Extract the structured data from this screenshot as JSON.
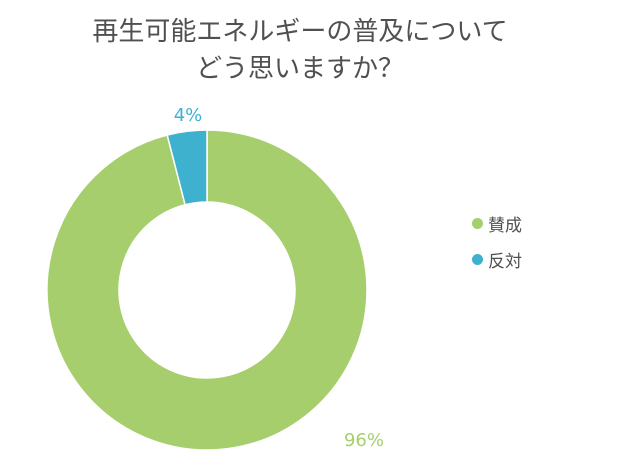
{
  "chart_data": {
    "type": "pie",
    "donut": true,
    "title_lines": [
      "再生可能エネルギーの普及について",
      "どう思いますか？"
    ],
    "categories": [
      "賛成",
      "反対"
    ],
    "values": [
      96,
      4
    ],
    "labels": [
      "96%",
      "4%"
    ],
    "colors": [
      "#a6ce6c",
      "#3eb1cf"
    ],
    "label_colors": [
      "#a6ce6c",
      "#3eb1cf"
    ],
    "legend_position": "right"
  }
}
